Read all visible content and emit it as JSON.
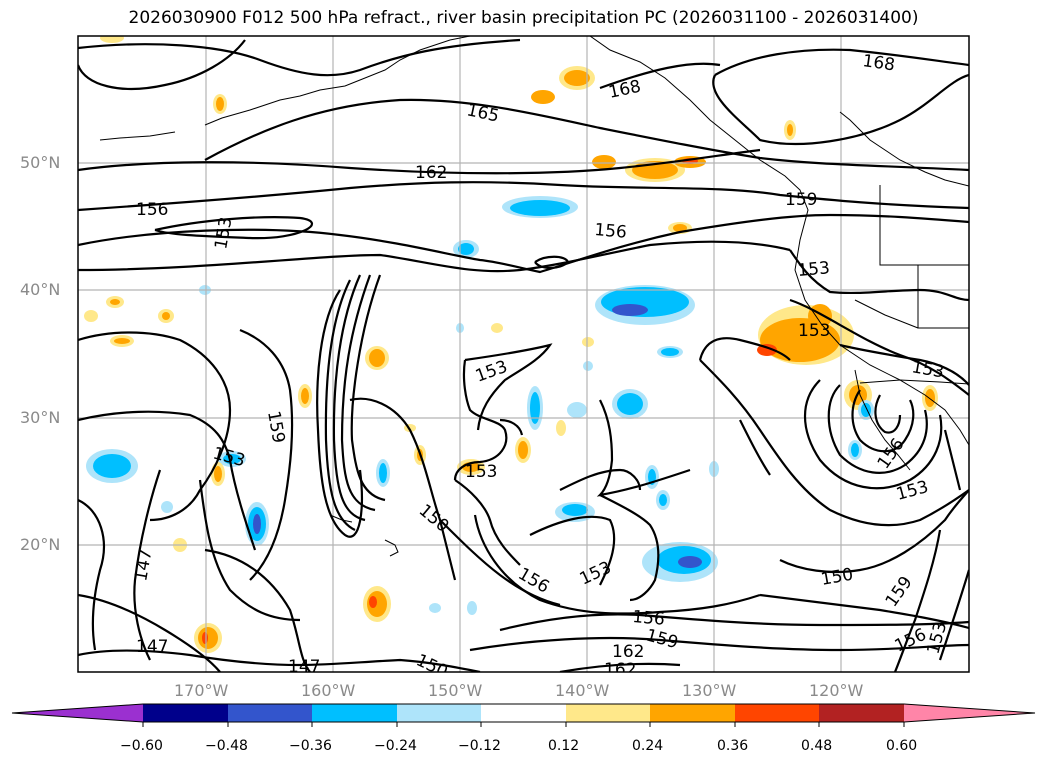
{
  "title": "2026030900 F012 500 hPa refract., river basin precipitation PC (2026031100 - 2026031400)",
  "lat_labels": [
    "50°N",
    "40°N",
    "30°N",
    "20°N"
  ],
  "lon_labels": [
    "170°W",
    "160°W",
    "150°W",
    "140°W",
    "130°W",
    "120°W"
  ],
  "contour_labels": [
    "168",
    "168",
    "165",
    "162",
    "159",
    "156",
    "156",
    "153",
    "153",
    "153",
    "153",
    "153",
    "156",
    "159",
    "153",
    "153",
    "150",
    "156",
    "153",
    "147",
    "147",
    "147",
    "150",
    "156",
    "159",
    "162",
    "162",
    "150",
    "159",
    "156",
    "153",
    "153"
  ],
  "colorbar": {
    "ticks": [
      "−0.60",
      "−0.48",
      "−0.36",
      "−0.24",
      "−0.12",
      "0.12",
      "0.24",
      "0.36",
      "0.48",
      "0.60"
    ],
    "colors": [
      "#9b30d0",
      "#00008b",
      "#3355cc",
      "#00bfff",
      "#aee4fa",
      "#ffffff",
      "#ffe88a",
      "#ffa500",
      "#ff4500",
      "#b22222",
      "#ff85a8"
    ]
  }
}
